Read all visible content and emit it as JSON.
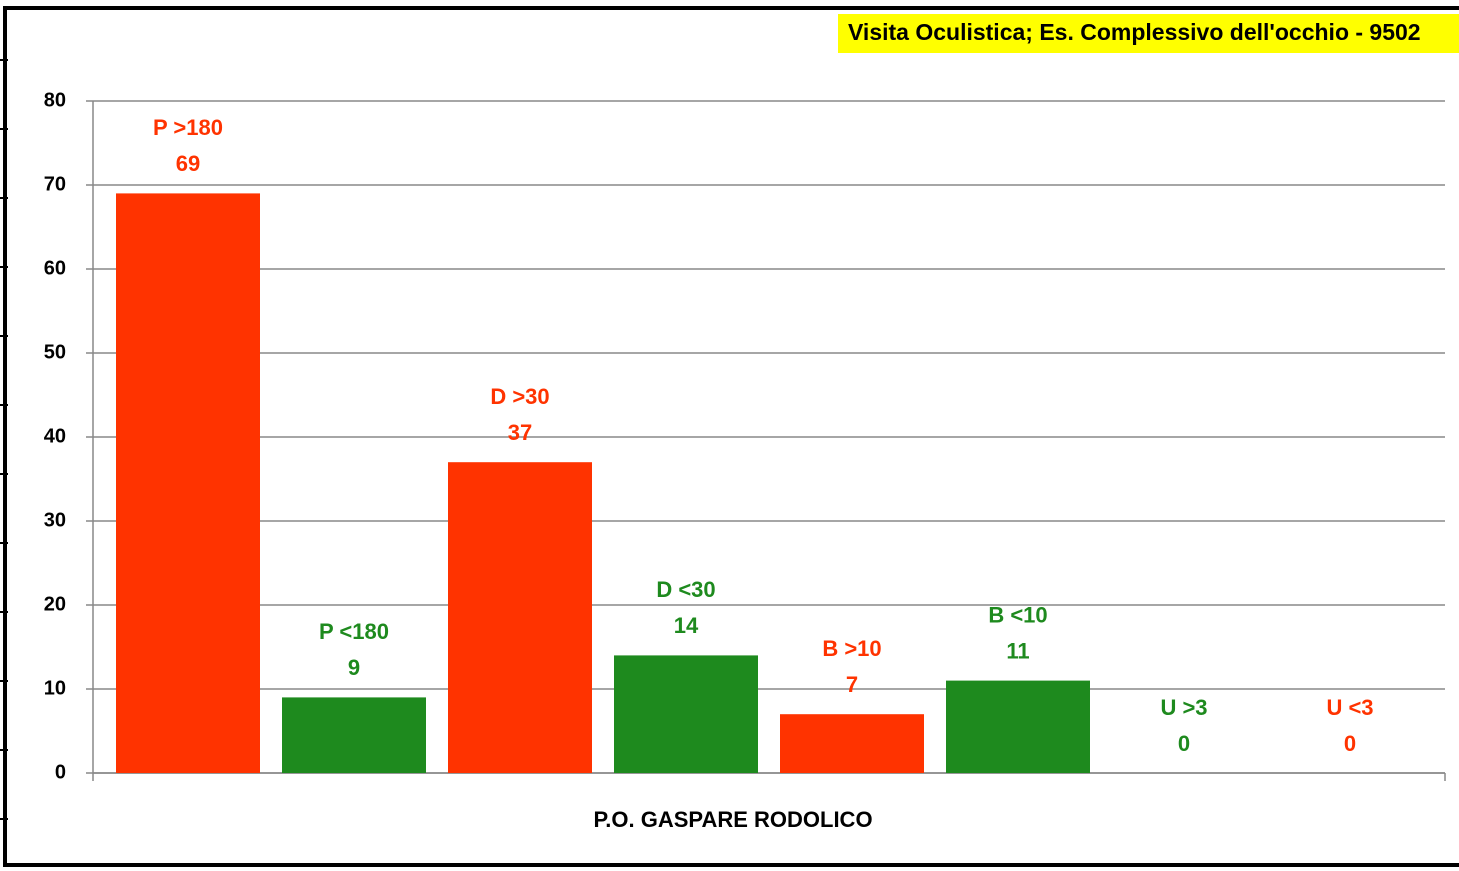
{
  "chart_data": {
    "type": "bar",
    "title": "Visita Oculistica; Es. Complessivo dell'occhio - 9502",
    "categories": [
      "P.O. GASPARE RODOLICO"
    ],
    "series": [
      {
        "name": "P >180",
        "color": "#ff3300",
        "values": [
          69
        ]
      },
      {
        "name": "P <180",
        "color": "#1e8a1e",
        "values": [
          9
        ]
      },
      {
        "name": "D >30",
        "color": "#ff3300",
        "values": [
          37
        ]
      },
      {
        "name": "D <30",
        "color": "#1e8a1e",
        "values": [
          14
        ]
      },
      {
        "name": "B >10",
        "color": "#ff3300",
        "values": [
          7
        ]
      },
      {
        "name": "B <10",
        "color": "#1e8a1e",
        "values": [
          11
        ]
      },
      {
        "name": "U >3",
        "color": "#1e8a1e",
        "values": [
          0
        ]
      },
      {
        "name": "U <3",
        "color": "#ff3300",
        "values": [
          0
        ]
      }
    ],
    "ylim": [
      0,
      80
    ],
    "yticks": [
      0,
      10,
      20,
      30,
      40,
      50,
      60,
      70,
      80
    ],
    "grid": true
  }
}
